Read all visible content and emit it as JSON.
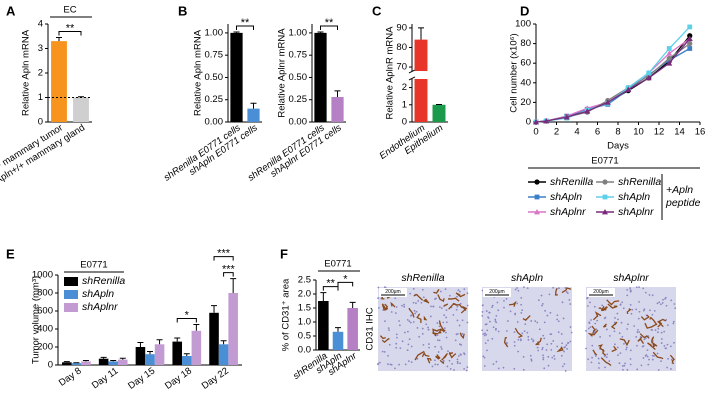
{
  "chart_data": [
    {
      "type": "bar",
      "panel": "A",
      "ylabel": "Relative Apln mRNA",
      "group_label": "EC",
      "categories": [
        "NeuT;Apln+/+ mammary tumor",
        "Apln+/+ mammary gland"
      ],
      "values": [
        3.3,
        1.0
      ],
      "errors": [
        0.15,
        0.03
      ],
      "colors": [
        "#f7941d",
        "#cfcfcf"
      ],
      "reference_line": 1,
      "ylim": [
        0,
        4
      ],
      "yticks": [
        0,
        1,
        2,
        3,
        4
      ],
      "significance": [
        "**"
      ]
    },
    {
      "type": "bar",
      "panel": "B",
      "ylabel": "Relative Apln mRNA",
      "categories": [
        "shRenilla E0771 cells",
        "shApln E0771 cells"
      ],
      "values": [
        1.0,
        0.15
      ],
      "errors": [
        0.01,
        0.06
      ],
      "colors": [
        "#000000",
        "#4a8fd6"
      ],
      "ylim": [
        0,
        1.1
      ],
      "yticks": [
        {
          "value": 0,
          "label": "0.00"
        },
        {
          "value": 0.25,
          "label": "0.25"
        },
        {
          "value": 0.5,
          "label": "0.50"
        },
        {
          "value": 0.75,
          "label": "0.75"
        },
        {
          "value": 1,
          "label": "1.00"
        }
      ],
      "significance": [
        "**"
      ]
    },
    {
      "type": "bar",
      "ylabel": "Relative Aplnr mRNA",
      "categories": [
        "shRenilla E0771 cells",
        "shAplnr E0771 cells"
      ],
      "values": [
        1.0,
        0.28
      ],
      "errors": [
        0.01,
        0.07
      ],
      "colors": [
        "#000000",
        "#b580c4"
      ],
      "ylim": [
        0,
        1.1
      ],
      "yticks": [
        {
          "value": 0,
          "label": "0.00"
        },
        {
          "value": 0.25,
          "label": "0.25"
        },
        {
          "value": 0.5,
          "label": "0.50"
        },
        {
          "value": 0.75,
          "label": "0.75"
        },
        {
          "value": 1,
          "label": "1.00"
        }
      ],
      "significance": [
        "**"
      ]
    },
    {
      "type": "bar",
      "panel": "C",
      "ylabel": "Relative AplnR mRNA",
      "categories": [
        "Endothelium",
        "Epithelium"
      ],
      "values": [
        84,
        1.0
      ],
      "errors": [
        6,
        0.02
      ],
      "colors": [
        "#e8352a",
        "#1a9a4a"
      ],
      "ylim": [
        0,
        92
      ],
      "axis_break": [
        2.5,
        68
      ],
      "yticks": [
        0,
        1,
        2,
        70,
        80,
        90
      ]
    },
    {
      "type": "line",
      "panel": "D",
      "ylabel": "Cell number (x10⁶)",
      "xlabel": "Days",
      "x": [
        0,
        1,
        3,
        5,
        7,
        9,
        11,
        13,
        15
      ],
      "xlim": [
        0,
        16
      ],
      "xticks": [
        0,
        2,
        4,
        6,
        8,
        10,
        12,
        14,
        16
      ],
      "ylim": [
        0,
        100
      ],
      "yticks": [
        0,
        20,
        40,
        60,
        80,
        100
      ],
      "legend_title": "E0771",
      "annotation": [
        "+Apln",
        "peptide"
      ],
      "series": [
        {
          "name": "shRenilla",
          "color": "#000000",
          "marker": "circle",
          "values": [
            0,
            1,
            5,
            12,
            20,
            32,
            45,
            62,
            88
          ]
        },
        {
          "name": "shApln",
          "color": "#3a80c9",
          "marker": "square",
          "values": [
            0,
            1,
            6,
            13,
            18,
            33,
            48,
            63,
            75
          ]
        },
        {
          "name": "shAplnr",
          "color": "#d877c8",
          "marker": "triangle",
          "values": [
            0,
            1,
            6,
            14,
            20,
            35,
            50,
            70,
            85
          ]
        },
        {
          "name": "shRenilla",
          "color": "#808080",
          "marker": "circle",
          "values": [
            0,
            1,
            5,
            10,
            22,
            35,
            47,
            65,
            80
          ]
        },
        {
          "name": "shApln",
          "color": "#5bd0e8",
          "marker": "square",
          "values": [
            0,
            1,
            4,
            12,
            19,
            35,
            50,
            75,
            97
          ]
        },
        {
          "name": "shAplnr",
          "color": "#7a2a7a",
          "marker": "triangle",
          "values": [
            0,
            1,
            5,
            11,
            20,
            33,
            45,
            60,
            85
          ]
        }
      ]
    },
    {
      "type": "grouped_bar",
      "panel": "E",
      "ylabel": "Tumor volume (mm³)",
      "legend_title": "E0771",
      "categories": [
        "Day 8",
        "Day 11",
        "Day 15",
        "Day 18",
        "Day 22"
      ],
      "ylim": [
        0,
        1000
      ],
      "yticks": [
        0,
        200,
        400,
        600,
        800,
        1000
      ],
      "series": [
        {
          "name": "shRenilla",
          "color": "#000000",
          "values": [
            30,
            70,
            200,
            260,
            580
          ],
          "errors": [
            8,
            15,
            50,
            40,
            80
          ]
        },
        {
          "name": "shApln",
          "color": "#4a8fd6",
          "values": [
            20,
            40,
            120,
            100,
            230
          ],
          "errors": [
            5,
            10,
            30,
            25,
            40
          ]
        },
        {
          "name": "shAplnr",
          "color": "#c39bd3",
          "values": [
            40,
            60,
            230,
            380,
            800
          ],
          "errors": [
            10,
            15,
            50,
            70,
            160
          ]
        }
      ],
      "significance": [
        "*",
        "***",
        "***"
      ]
    },
    {
      "type": "bar",
      "panel": "F",
      "ylabel": "% of CD31⁺ area",
      "group_label": "E0771",
      "categories": [
        "shRenilla",
        "shApln",
        "shAplnr"
      ],
      "values": [
        1.75,
        0.65,
        1.5
      ],
      "errors": [
        0.3,
        0.15,
        0.2
      ],
      "colors": [
        "#000000",
        "#4a8fd6",
        "#b580c4"
      ],
      "ylim": [
        0,
        2.5
      ],
      "yticks": [
        {
          "value": 0,
          "label": "0.0"
        },
        {
          "value": 0.5,
          "label": "0.5"
        },
        {
          "value": 1,
          "label": "1.0"
        },
        {
          "value": 1.5,
          "label": "1.5"
        },
        {
          "value": 2,
          "label": "2.0"
        },
        {
          "value": 2.5,
          "label": "2.5"
        }
      ],
      "significance": [
        "**",
        "*"
      ]
    }
  ],
  "images": {
    "titles": [
      "shRenilla",
      "shApln",
      "shAplnr"
    ],
    "scale_bar": "200μm",
    "stain_label": "CD31 IHC"
  }
}
